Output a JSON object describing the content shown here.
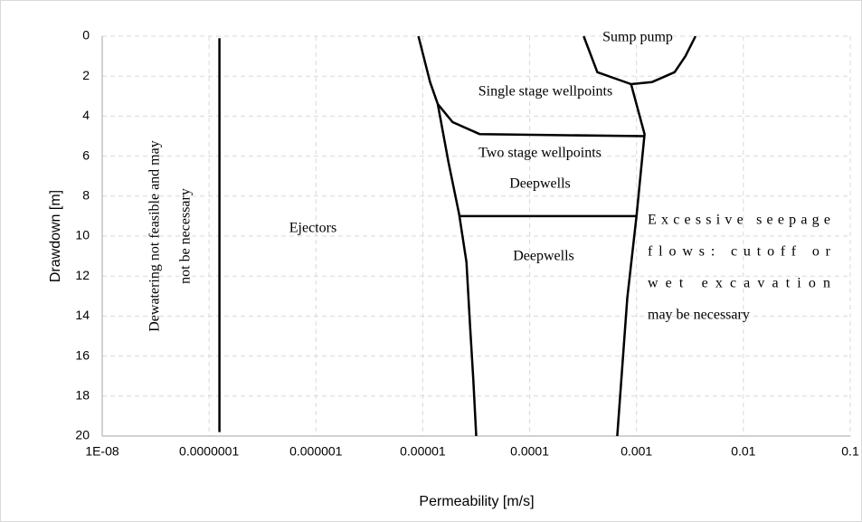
{
  "chart_data": {
    "type": "line",
    "xlabel": "Permeability [m/s]",
    "ylabel": "Drawdown [m]",
    "xscale": "log",
    "xlim": [
      1e-08,
      0.1
    ],
    "xticks": [
      {
        "value": 1e-08,
        "label": "1E-08"
      },
      {
        "value": 1e-07,
        "label": "0.0000001"
      },
      1e-06,
      1e-05,
      0.0001,
      0.001,
      0.01,
      0.1
    ],
    "ylim": [
      20,
      0
    ],
    "yticks": [
      0,
      2,
      4,
      6,
      8,
      10,
      12,
      14,
      16,
      18,
      20
    ],
    "grid": true,
    "series": [
      {
        "color": "#000000",
        "x": [
          1.25e-07,
          1.25e-07
        ],
        "values": [
          0.1,
          19.8
        ]
      },
      {
        "color": "#000000",
        "x": [
          9.1e-06,
          1.17e-05,
          1.38e-05,
          1.74e-05,
          2.19e-05,
          2.56e-05,
          2.77e-05,
          2.97e-05,
          3.16e-05
        ],
        "values": [
          0,
          2.3,
          3.4,
          6.3,
          8.9,
          11.3,
          14.5,
          17.2,
          20
        ]
      },
      {
        "color": "#000000",
        "x": [
          0.000889,
          0.00119,
          0.001,
          0.00082,
          0.00072,
          0.00066
        ],
        "values": [
          2.4,
          4.9,
          9,
          13.1,
          17.2,
          20
        ]
      },
      {
        "color": "#000000",
        "x": [
          1.38e-05,
          1.9e-05,
          3.42e-05,
          0.00119
        ],
        "values": [
          3.4,
          4.3,
          4.9,
          5
        ]
      },
      {
        "color": "#000000",
        "x": [
          2.19e-05,
          0.001
        ],
        "values": [
          9,
          9
        ]
      },
      {
        "color": "#000000",
        "x": [
          0.00032,
          0.00043,
          0.000889,
          0.00139,
          0.00227,
          0.00287,
          0.00356
        ],
        "values": [
          0,
          1.8,
          2.4,
          2.3,
          1.8,
          1,
          0
        ]
      }
    ],
    "annotations": [
      {
        "lines": [
          "Sump pump"
        ]
      },
      {
        "lines": [
          "Single stage wellpoints"
        ]
      },
      {
        "lines": [
          "Two stage wellpoints"
        ]
      },
      {
        "lines": [
          "Deepwells"
        ]
      },
      {
        "lines": [
          "Deepwells"
        ]
      },
      {
        "lines": [
          "Ejectors"
        ]
      },
      {
        "lines": [
          "Excessive seepage",
          "flows: cutoff or",
          "wet excavation",
          "may be necessary"
        ]
      },
      {
        "lines": [
          "Dewatering not feasible and may",
          "not be necessary"
        ]
      }
    ]
  }
}
